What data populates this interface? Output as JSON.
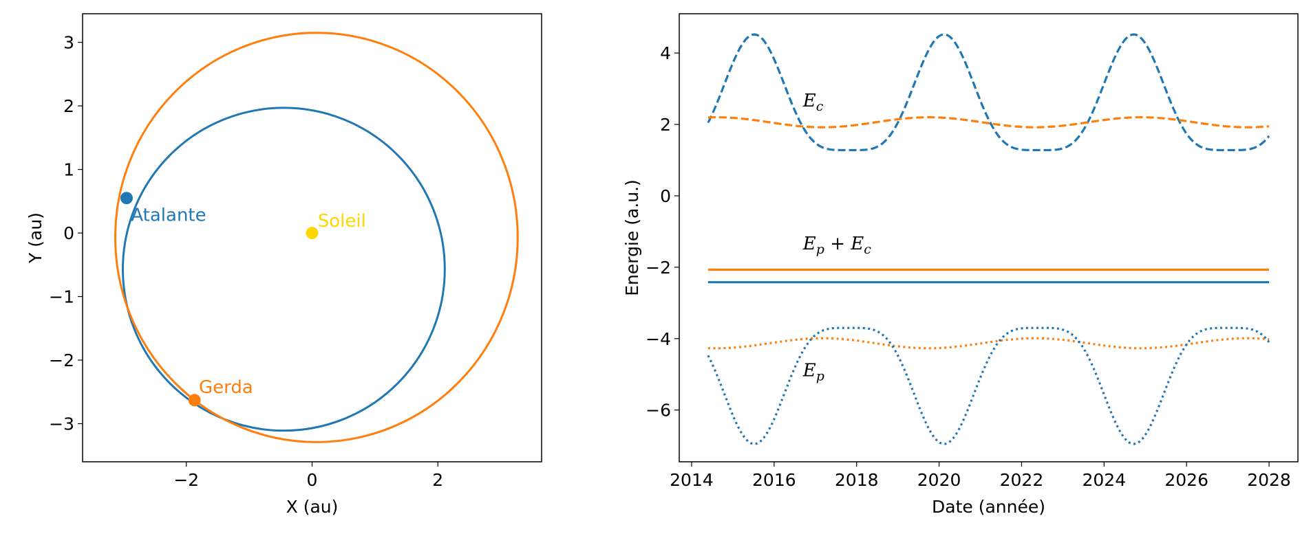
{
  "chart_data": [
    {
      "type": "line",
      "xlabel": "X (au)",
      "ylabel": "Y (au)",
      "xlim": [
        -3.65,
        3.65
      ],
      "ylim": [
        -3.6,
        3.45
      ],
      "xticks": [
        -2,
        0,
        2
      ],
      "xtick_labels": [
        "−2",
        "0",
        "2"
      ],
      "yticks": [
        -3,
        -2,
        -1,
        0,
        1,
        2,
        3
      ],
      "ytick_labels": [
        "−3",
        "−2",
        "−1",
        "0",
        "1",
        "2",
        "3"
      ],
      "grid": false,
      "series": [
        {
          "name": "Atalante",
          "color": "#1f77b4",
          "orbit": {
            "cx": -0.45,
            "cy": -0.57,
            "rx": 2.56,
            "ry": 2.54
          },
          "marker": [
            -2.95,
            0.55
          ]
        },
        {
          "name": "Gerda",
          "color": "#ff7f0e",
          "orbit": {
            "cx": 0.07,
            "cy": -0.07,
            "rx": 3.2,
            "ry": 3.22
          },
          "marker": [
            -1.87,
            -2.63
          ]
        },
        {
          "name": "Soleil",
          "color": "#ffd700",
          "marker": [
            0,
            0
          ]
        }
      ],
      "annotations": [
        {
          "text": "Atalante",
          "at": [
            -2.88,
            0.19
          ],
          "color": "#1f77b4"
        },
        {
          "text": "Soleil",
          "at": [
            0.09,
            0.1
          ],
          "color": "#ffd700"
        },
        {
          "text": "Gerda",
          "at": [
            -1.8,
            -2.52
          ],
          "color": "#ff7f0e"
        }
      ]
    },
    {
      "type": "line",
      "xlabel": "Date (année)",
      "ylabel": "Energie (a.u.)",
      "xlim": [
        2013.7,
        2028.7
      ],
      "ylim": [
        -7.45,
        5.1
      ],
      "xticks": [
        2014,
        2016,
        2018,
        2020,
        2022,
        2024,
        2026,
        2028
      ],
      "xtick_labels": [
        "2014",
        "2016",
        "2018",
        "2020",
        "2022",
        "2024",
        "2026",
        "2028"
      ],
      "yticks": [
        -6,
        -4,
        -2,
        0,
        2,
        4
      ],
      "ytick_labels": [
        "−6",
        "−4",
        "−2",
        "0",
        "2",
        "4"
      ],
      "grid": false,
      "x_range": [
        2014.4,
        2028
      ],
      "series": [
        {
          "label": "Ec",
          "body": "Atalante",
          "color": "#1f77b4",
          "style": "dashed",
          "curve": "kinetic",
          "period": 4.6,
          "first_peak": 2015.52,
          "min": 1.28,
          "max": 4.52,
          "sharpness": 2.2
        },
        {
          "label": "Ec",
          "body": "Gerda",
          "color": "#ff7f0e",
          "style": "dashed",
          "curve": "cosine",
          "period": 5.15,
          "first_peak": 2014.6,
          "mean": 2.06,
          "amplitude": 0.14
        },
        {
          "label": "Ep + Ec",
          "body": "Gerda",
          "color": "#ff7f0e",
          "style": "solid",
          "curve": "constant",
          "value": -2.07
        },
        {
          "label": "Ep + Ec",
          "body": "Atalante",
          "color": "#1f77b4",
          "style": "solid",
          "curve": "constant",
          "value": -2.42
        },
        {
          "label": "Ep",
          "body": "Gerda",
          "color": "#ff7f0e",
          "style": "dotted",
          "curve": "cosine",
          "period": 5.15,
          "first_peak": 2014.6,
          "mean": -4.13,
          "amplitude": -0.14
        },
        {
          "label": "Ep",
          "body": "Atalante",
          "color": "#1f77b4",
          "style": "dotted",
          "curve": "potential",
          "period": 4.6,
          "first_peak": 2015.52,
          "min": -6.95,
          "max": -3.7,
          "sharpness": 2.2
        }
      ],
      "annotations": [
        {
          "main": "E",
          "sub": "c",
          "at": [
            2016.7,
            2.5
          ]
        },
        {
          "main": "E",
          "sub": "p",
          "op": " + ",
          "main2": "E",
          "sub2": "c",
          "at": [
            2016.7,
            -1.5
          ]
        },
        {
          "main": "E",
          "sub": "p",
          "at": [
            2016.7,
            -5.05
          ]
        }
      ]
    }
  ]
}
